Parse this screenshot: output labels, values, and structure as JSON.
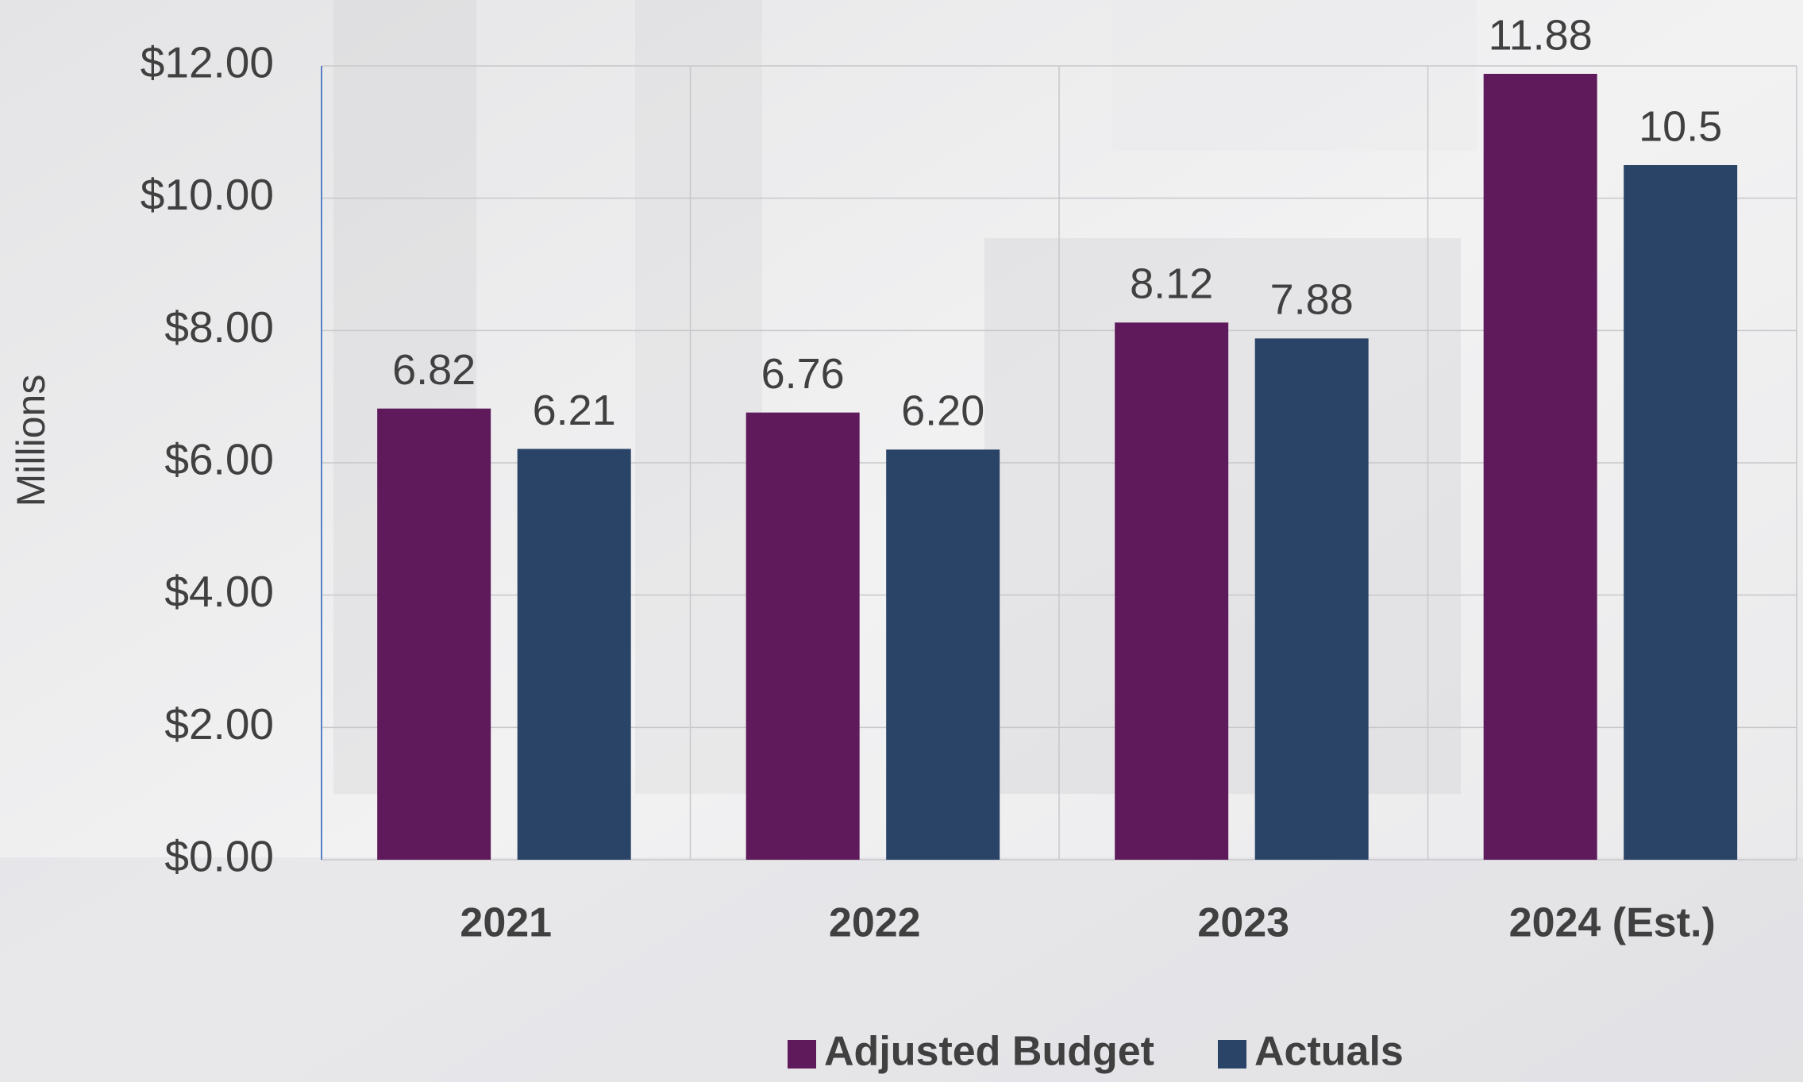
{
  "chart_data": {
    "type": "bar",
    "y_label": "Millions",
    "categories": [
      "2021",
      "2022",
      "2023",
      "2024 (Est.)"
    ],
    "series": [
      {
        "name": "Adjusted Budget",
        "color": "#5e1a5a",
        "values": [
          6.82,
          6.76,
          8.12,
          11.88
        ],
        "value_labels": [
          "6.82",
          "6.76",
          "8.12",
          "11.88"
        ]
      },
      {
        "name": "Actuals",
        "color": "#2a4468",
        "values": [
          6.21,
          6.2,
          7.88,
          10.5
        ],
        "value_labels": [
          "6.21",
          "6.20",
          "7.88",
          "10.5"
        ]
      }
    ],
    "ylim": [
      0,
      12
    ],
    "yticks": [
      {
        "value": 0,
        "label": "$0.00"
      },
      {
        "value": 2,
        "label": "$2.00"
      },
      {
        "value": 4,
        "label": "$4.00"
      },
      {
        "value": 6,
        "label": "$6.00"
      },
      {
        "value": 8,
        "label": "$8.00"
      },
      {
        "value": 10,
        "label": "$10.00"
      },
      {
        "value": 12,
        "label": "$12.00"
      }
    ],
    "grid": true,
    "legend": "bottom"
  }
}
